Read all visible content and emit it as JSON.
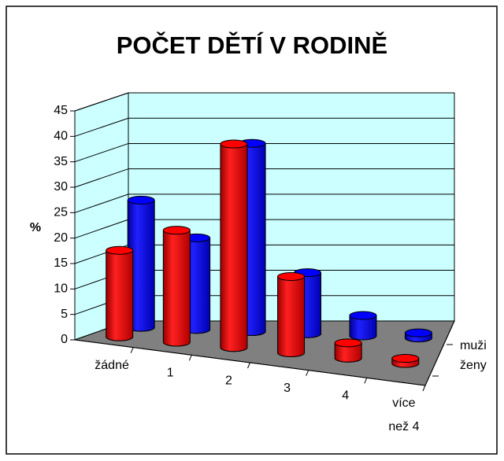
{
  "chart_data": {
    "type": "bar3d",
    "title": "POČET DĚTÍ V RODINĚ",
    "ylabel": "%",
    "categories": [
      "žádné",
      "1",
      "2",
      "3",
      "4",
      "více\nnež 4"
    ],
    "series": [
      {
        "name": "ženy",
        "color": "#ff0000",
        "values": [
          17,
          22,
          40,
          15,
          3,
          1
        ]
      },
      {
        "name": "muži",
        "color": "#0000ff",
        "values": [
          25,
          18,
          37,
          12,
          4,
          1
        ]
      }
    ],
    "ylim": [
      0,
      45
    ],
    "yticks": [
      0,
      5,
      10,
      15,
      20,
      25,
      30,
      35,
      40,
      45
    ],
    "grid": true
  }
}
